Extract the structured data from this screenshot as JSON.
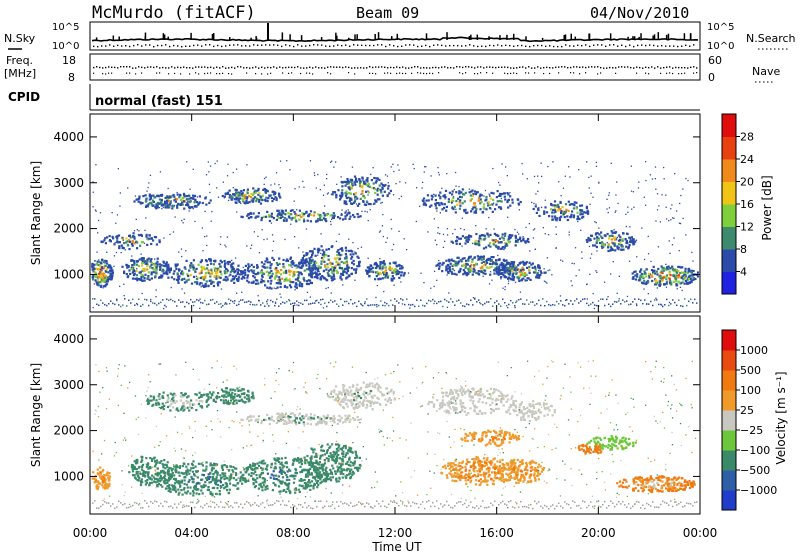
{
  "header": {
    "station": "McMurdo (fitACF)",
    "beam": "Beam 09",
    "date": "04/Nov/2010"
  },
  "top_panels": {
    "nsky_label": "N.Sky",
    "nsearch_label": "N.Search",
    "noise_ticks": [
      "10^5",
      "10^0"
    ],
    "freq_label": "Freq.",
    "freq_unit": "[MHz]",
    "freq_ticks": [
      "18",
      "8"
    ],
    "nave_label": "Nave",
    "nave_ticks": [
      "60",
      "0"
    ],
    "cpid_label": "CPID",
    "cpid_value": "normal (fast) 151"
  },
  "chart_data": [
    {
      "type": "heatmap",
      "title": "",
      "xlabel": "Time UT",
      "ylabel": "Slant Range [km]",
      "x_ticks": [
        "00:00",
        "04:00",
        "08:00",
        "12:00",
        "16:00",
        "20:00",
        "00:00"
      ],
      "y_ticks": [
        1000,
        2000,
        3000,
        4000
      ],
      "ylim": [
        180,
        4500
      ],
      "colorbar": {
        "label": "Power [dB]",
        "ticks": [
          4,
          8,
          12,
          16,
          20,
          24,
          28
        ],
        "colors": [
          "#1f22e0",
          "#2a4ba8",
          "#3e8a6e",
          "#7fcf3a",
          "#f0c414",
          "#f08a1a",
          "#e84010",
          "#e00d0d"
        ]
      }
    },
    {
      "type": "heatmap",
      "title": "",
      "xlabel": "Time UT",
      "ylabel": "Slant Range [km]",
      "x_ticks": [
        "00:00",
        "04:00",
        "08:00",
        "12:00",
        "16:00",
        "20:00",
        "00:00"
      ],
      "y_ticks": [
        1000,
        2000,
        3000,
        4000
      ],
      "ylim": [
        180,
        4500
      ],
      "colorbar": {
        "label": "Velocity [m s⁻¹]",
        "ticks": [
          "1000",
          "500",
          "100",
          "25",
          "−25",
          "−100",
          "−500",
          "−1000"
        ],
        "colors": [
          "#1f3dc8",
          "#2e5fa6",
          "#3a8a6a",
          "#6cc83a",
          "#c8c8c0",
          "#f09a2a",
          "#f07a10",
          "#e84a10",
          "#e00d0d"
        ]
      }
    }
  ],
  "colors": {
    "axis": "#000000",
    "ground_scatter": "#a0a0a0"
  }
}
